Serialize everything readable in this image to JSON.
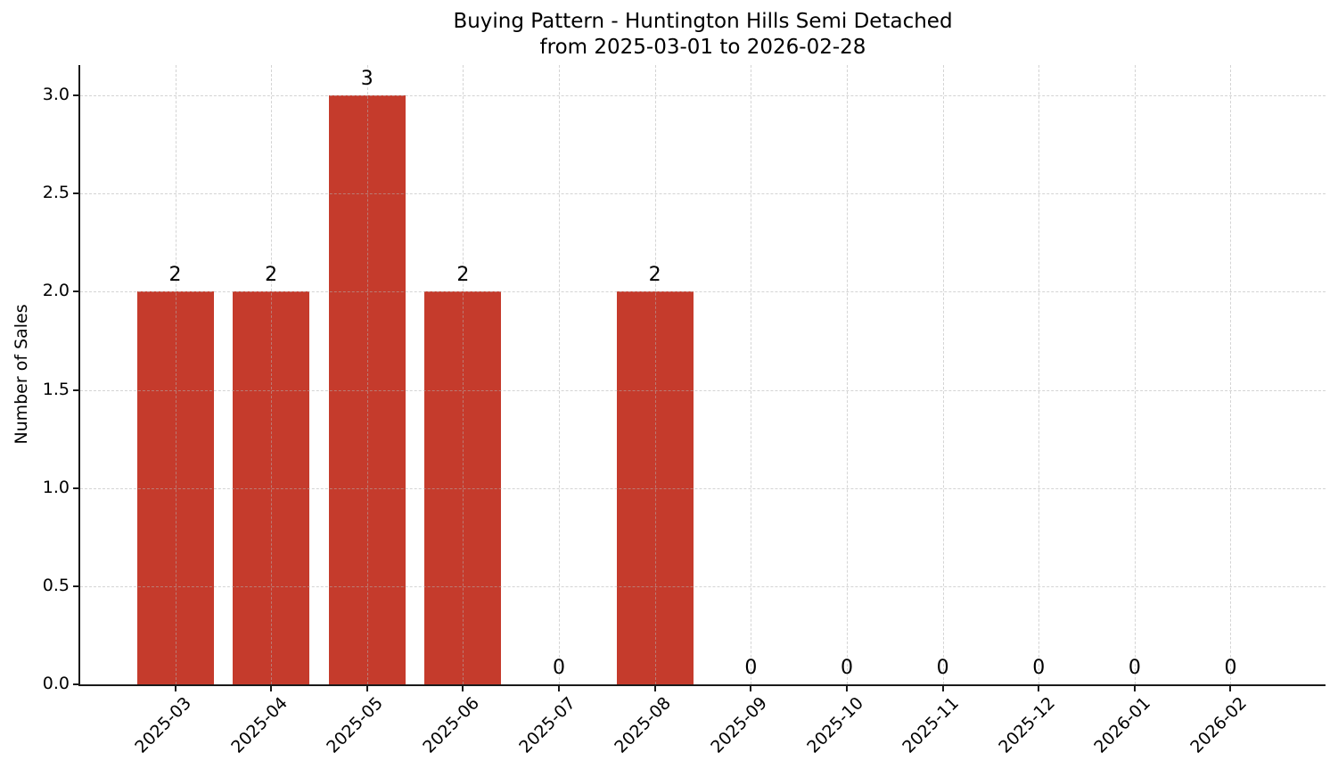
{
  "title": {
    "line1": "Buying Pattern - Huntington Hills Semi Detached",
    "line2": "from 2025-03-01 to 2026-02-28"
  },
  "colors": {
    "bar": "#c53b2c",
    "axis": "#1a1a1a",
    "grid": "#b0b0b0",
    "text": "#000000",
    "background": "#ffffff"
  },
  "chart_data": {
    "type": "bar",
    "title": "Buying Pattern - Huntington Hills Semi Detached\nfrom 2025-03-01 to 2026-02-28",
    "title_lines": [
      "Buying Pattern - Huntington Hills Semi Detached",
      "from 2025-03-01 to 2026-02-28"
    ],
    "xlabel": "",
    "ylabel": "Number of Sales",
    "categories": [
      "2025-03",
      "2025-04",
      "2025-05",
      "2025-06",
      "2025-07",
      "2025-08",
      "2025-09",
      "2025-10",
      "2025-11",
      "2025-12",
      "2026-01",
      "2026-02"
    ],
    "values": [
      2,
      2,
      3,
      2,
      0,
      2,
      0,
      0,
      0,
      0,
      0,
      0
    ],
    "bar_value_labels": [
      "2",
      "2",
      "3",
      "2",
      "0",
      "2",
      "0",
      "0",
      "0",
      "0",
      "0",
      "0"
    ],
    "yticks": [
      0.0,
      0.5,
      1.0,
      1.5,
      2.0,
      2.5,
      3.0
    ],
    "ytick_labels": [
      "0.0",
      "0.5",
      "1.0",
      "1.5",
      "2.0",
      "2.5",
      "3.0"
    ],
    "ylim": [
      0,
      3.155
    ],
    "grid": true,
    "grid_style": "dashed",
    "legend": false,
    "xtick_rotation_deg": 45
  }
}
